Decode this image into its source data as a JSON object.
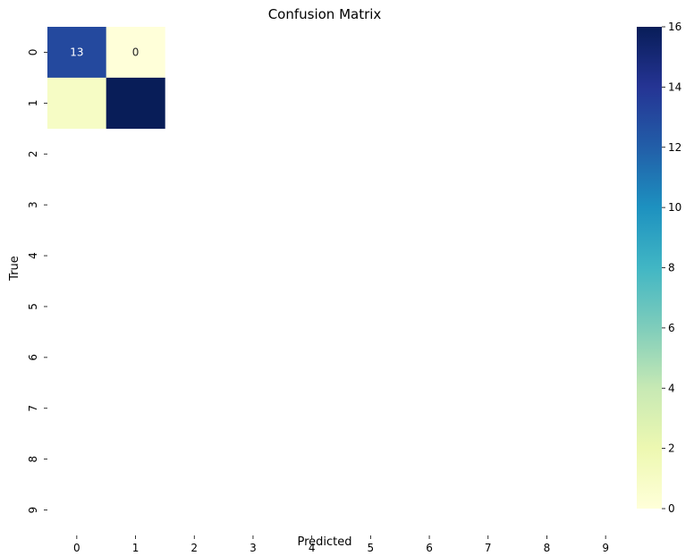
{
  "chart_data": {
    "type": "heatmap",
    "title": "Confusion Matrix",
    "xlabel": "Predicted",
    "ylabel": "True",
    "x_tick_labels": [
      "0",
      "1",
      "2",
      "3",
      "4",
      "5",
      "6",
      "7",
      "8",
      "9"
    ],
    "y_tick_labels": [
      "0",
      "1",
      "2",
      "3",
      "4",
      "5",
      "6",
      "7",
      "8",
      "9"
    ],
    "cells": [
      {
        "row": 0,
        "col": 0,
        "value": 13,
        "annotation": "13"
      },
      {
        "row": 0,
        "col": 1,
        "value": 0,
        "annotation": "0"
      },
      {
        "row": 1,
        "col": 0,
        "value": 1,
        "annotation": ""
      },
      {
        "row": 1,
        "col": 1,
        "value": 16,
        "annotation": ""
      }
    ],
    "colormap": "YlGnBu",
    "color_stops": [
      "#ffffd9",
      "#edf8b1",
      "#c7e9b4",
      "#7fcdbb",
      "#41b6c4",
      "#1d91c0",
      "#225ea8",
      "#253494",
      "#081d58"
    ],
    "colorbar": {
      "range": [
        0,
        16
      ],
      "tick_labels": [
        "0",
        "2",
        "4",
        "6",
        "8",
        "10",
        "12",
        "14",
        "16"
      ]
    },
    "grid": false
  }
}
